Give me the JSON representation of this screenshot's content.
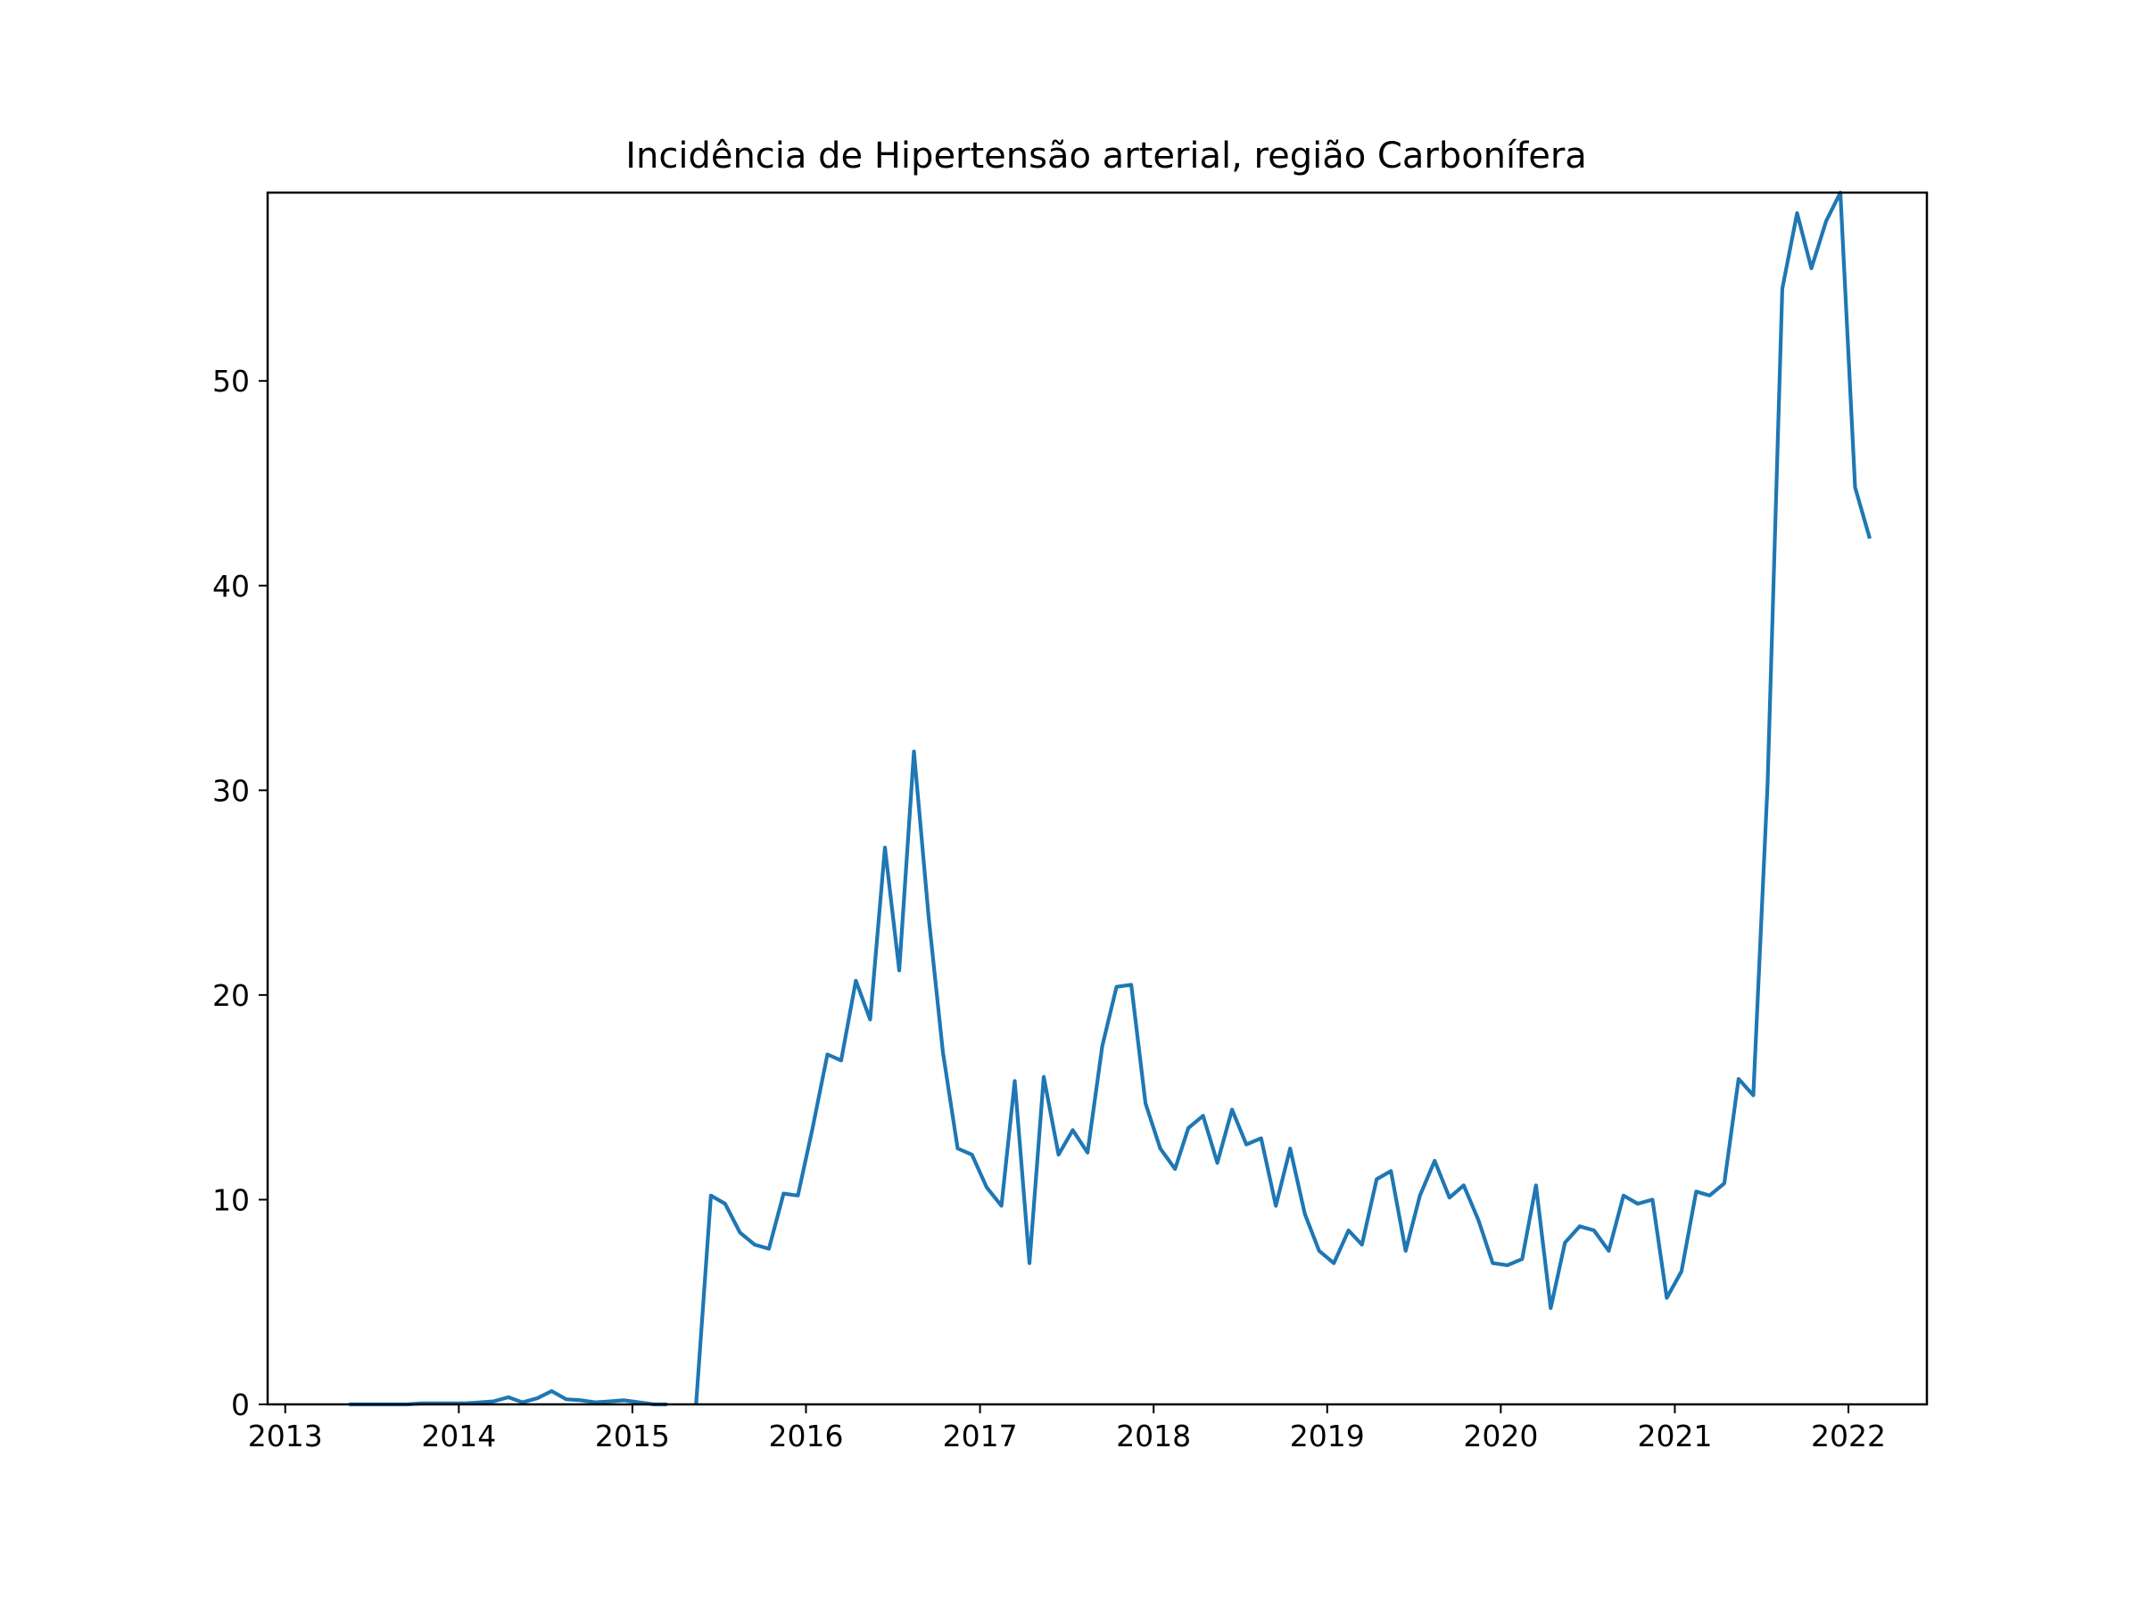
{
  "chart_data": {
    "type": "line",
    "title": "Incidência de Hipertensão arterial, região Carbonífera",
    "xlabel": "",
    "ylabel": "",
    "xlim": [
      "2012-11-25",
      "2022-06-15"
    ],
    "ylim": [
      0,
      59.2
    ],
    "x_ticks": [
      "2013",
      "2014",
      "2015",
      "2016",
      "2017",
      "2018",
      "2019",
      "2020",
      "2021",
      "2022"
    ],
    "y_ticks": [
      0,
      10,
      20,
      30,
      40,
      50
    ],
    "grid": false,
    "line_color": "#1f77b4",
    "series": [
      {
        "segments": [
          {
            "x": [
              "2013-05",
              "2013-06",
              "2013-07",
              "2013-08",
              "2013-09",
              "2013-10",
              "2013-11",
              "2013-12",
              "2014-01",
              "2014-02",
              "2014-03",
              "2014-04",
              "2014-05",
              "2014-06",
              "2014-07",
              "2014-08",
              "2014-09",
              "2014-10",
              "2014-11",
              "2014-12",
              "2015-01",
              "2015-02",
              "2015-03"
            ],
            "y": [
              0,
              0,
              0,
              0,
              0,
              0.05,
              0.05,
              0.05,
              0.05,
              0.1,
              0.15,
              0.35,
              0.1,
              0.3,
              0.65,
              0.25,
              0.2,
              0.1,
              0.15,
              0.2,
              0.1,
              0,
              0
            ]
          },
          {
            "x": [
              "2015-05",
              "2015-06",
              "2015-07",
              "2015-08",
              "2015-09",
              "2015-10",
              "2015-11",
              "2015-12",
              "2016-01",
              "2016-02",
              "2016-03",
              "2016-04",
              "2016-05",
              "2016-06",
              "2016-07",
              "2016-08",
              "2016-09",
              "2016-10",
              "2016-11",
              "2016-12",
              "2017-01",
              "2017-02",
              "2017-03",
              "2017-04",
              "2017-05",
              "2017-06",
              "2017-07",
              "2017-08",
              "2017-09",
              "2017-10",
              "2017-11",
              "2017-12",
              "2018-01",
              "2018-02",
              "2018-03",
              "2018-04",
              "2018-05",
              "2018-06",
              "2018-07",
              "2018-08",
              "2018-09",
              "2018-10",
              "2018-11",
              "2018-12",
              "2019-01",
              "2019-02",
              "2019-03",
              "2019-04",
              "2019-05",
              "2019-06",
              "2019-07",
              "2019-08",
              "2019-09",
              "2019-10",
              "2019-11",
              "2019-12",
              "2020-01",
              "2020-02",
              "2020-03",
              "2020-04",
              "2020-05",
              "2020-06",
              "2020-07",
              "2020-08",
              "2020-09",
              "2020-10",
              "2020-11",
              "2020-12",
              "2021-01",
              "2021-02",
              "2021-03",
              "2021-04",
              "2021-05",
              "2021-06",
              "2021-07",
              "2021-08",
              "2021-09",
              "2021-10",
              "2021-11",
              "2021-12",
              "2022-01",
              "2022-02"
            ],
            "y": [
              0,
              10.2,
              9.8,
              8.4,
              7.8,
              7.6,
              10.3,
              10.2,
              13.5,
              17.1,
              16.8,
              20.7,
              18.8,
              27.2,
              21.2,
              31.9,
              23.8,
              17.2,
              12.5,
              12.2,
              10.6,
              9.7,
              15.8,
              6.9,
              16.0,
              12.2,
              13.4,
              12.3,
              17.5,
              20.4,
              20.5,
              14.7,
              12.5,
              11.5,
              13.5,
              14.1,
              11.8,
              14.4,
              12.7,
              13.0,
              9.7,
              12.5,
              9.3,
              7.5,
              6.9,
              8.5,
              7.8,
              11.0,
              11.4,
              7.5,
              10.2,
              11.9,
              10.1,
              10.7,
              9.0,
              6.9,
              6.8,
              7.1,
              10.7,
              4.7,
              7.9,
              8.7,
              8.5,
              7.5,
              10.2,
              9.8,
              10.0,
              5.2,
              6.5,
              10.4,
              10.2,
              10.8,
              15.9,
              15.1,
              30.3,
              54.5,
              58.2,
              55.5,
              57.8,
              59.2,
              44.8,
              42.3
            ]
          }
        ]
      }
    ]
  }
}
